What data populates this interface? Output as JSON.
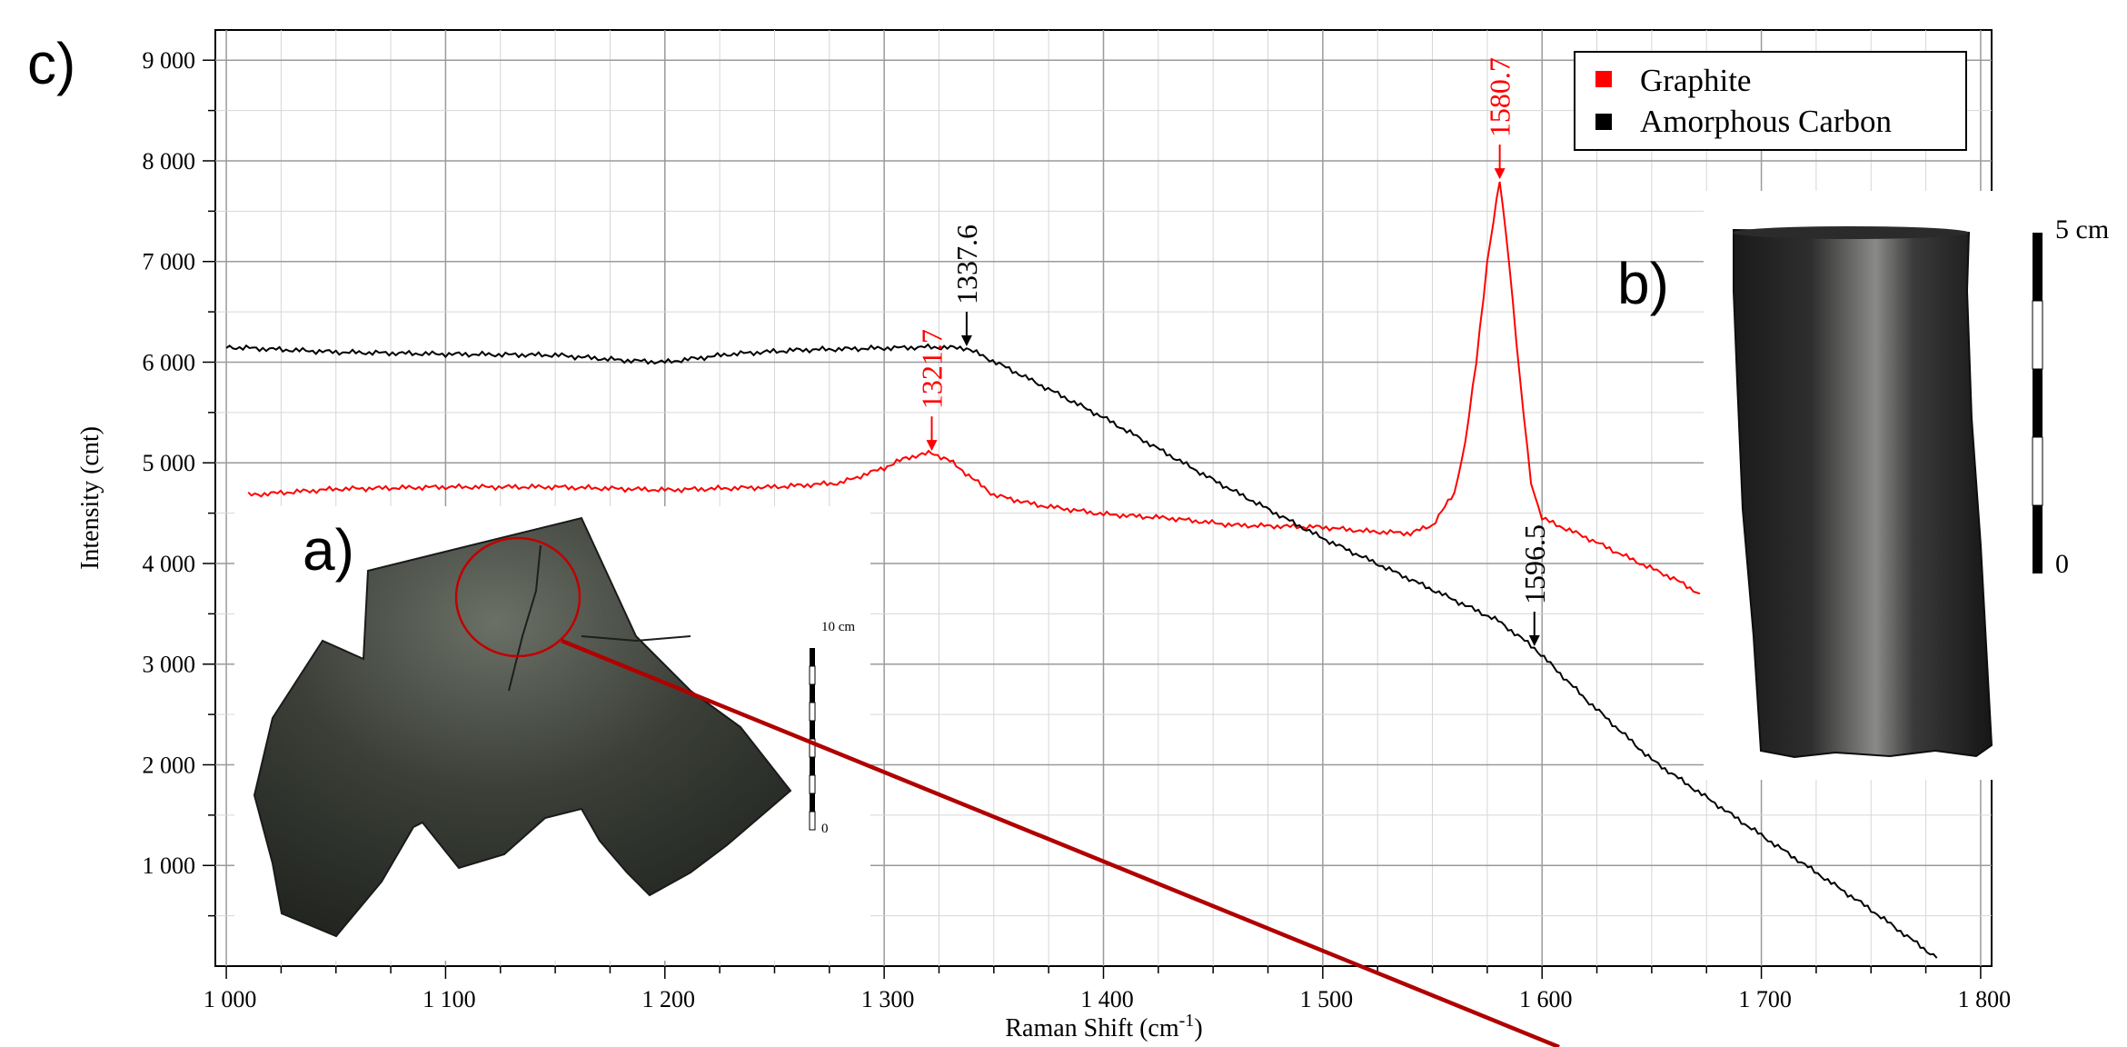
{
  "panel_labels": {
    "a": "a)",
    "b": "b)",
    "c": "c)"
  },
  "colors": {
    "graphite": "#ff0000",
    "amorphous": "#000000",
    "pointer_line": "#b00000",
    "grid": "#c8c8c8"
  },
  "chart_data": {
    "type": "line",
    "xlabel": "Raman Shift (cm",
    "xlabel_sup": "-1",
    "xlabel_end": ")",
    "ylabel": "Intensity (cnt)",
    "xlim": [
      995,
      1805
    ],
    "ylim": [
      0,
      9300
    ],
    "x_ticks": [
      {
        "v": 1000,
        "label": "1 000"
      },
      {
        "v": 1100,
        "label": "1 100"
      },
      {
        "v": 1200,
        "label": "1 200"
      },
      {
        "v": 1300,
        "label": "1 300"
      },
      {
        "v": 1400,
        "label": "1 400"
      },
      {
        "v": 1500,
        "label": "1 500"
      },
      {
        "v": 1600,
        "label": "1 600"
      },
      {
        "v": 1700,
        "label": "1 700"
      },
      {
        "v": 1800,
        "label": "1 800"
      }
    ],
    "y_ticks": [
      {
        "v": 1000,
        "label": "1 000"
      },
      {
        "v": 2000,
        "label": "2 000"
      },
      {
        "v": 3000,
        "label": "3 000"
      },
      {
        "v": 4000,
        "label": "4 000"
      },
      {
        "v": 5000,
        "label": "5 000"
      },
      {
        "v": 6000,
        "label": "6 000"
      },
      {
        "v": 7000,
        "label": "7 000"
      },
      {
        "v": 8000,
        "label": "8 000"
      },
      {
        "v": 9000,
        "label": "9 000"
      }
    ],
    "grid": true,
    "legend_position": "top-right",
    "series": [
      {
        "name": "Graphite",
        "color": "#ff0000",
        "x": [
          1010,
          1050,
          1100,
          1150,
          1200,
          1250,
          1280,
          1300,
          1310,
          1321.7,
          1330,
          1340,
          1350,
          1370,
          1400,
          1430,
          1460,
          1500,
          1520,
          1540,
          1550,
          1560,
          1565,
          1570,
          1575,
          1580.7,
          1585,
          1590,
          1595,
          1600,
          1605,
          1620,
          1640,
          1660,
          1672
        ],
        "y": [
          4680,
          4740,
          4760,
          4760,
          4730,
          4760,
          4800,
          4950,
          5050,
          5100,
          5020,
          4850,
          4680,
          4580,
          4490,
          4450,
          4380,
          4360,
          4320,
          4300,
          4380,
          4700,
          5200,
          6000,
          7000,
          7800,
          7000,
          5800,
          4800,
          4450,
          4400,
          4260,
          4050,
          3850,
          3700
        ]
      },
      {
        "name": "Amorphous Carbon",
        "color": "#000000",
        "x": [
          1000,
          1050,
          1100,
          1150,
          1180,
          1200,
          1230,
          1260,
          1300,
          1320,
          1337.6,
          1360,
          1400,
          1450,
          1500,
          1550,
          1580,
          1596.5,
          1620,
          1650,
          1700,
          1750,
          1780
        ],
        "y": [
          6150,
          6100,
          6080,
          6070,
          6020,
          6000,
          6080,
          6120,
          6140,
          6150,
          6140,
          5900,
          5450,
          4830,
          4250,
          3740,
          3430,
          3160,
          2650,
          2050,
          1300,
          560,
          80
        ]
      }
    ],
    "annotations": [
      {
        "label": "1321.7",
        "x": 1321.7,
        "y": 5100,
        "color": "#ff0000"
      },
      {
        "label": "1337.6",
        "x": 1337.6,
        "y": 6140,
        "color": "#000000"
      },
      {
        "label": "1580.7",
        "x": 1580.7,
        "y": 7800,
        "color": "#ff0000"
      },
      {
        "label": "1596.5",
        "x": 1596.5,
        "y": 3160,
        "color": "#000000"
      }
    ]
  },
  "inset_a": {
    "scale_top": "10 cm",
    "scale_bottom": "0"
  },
  "inset_b": {
    "scale_top": "5 cm",
    "scale_bottom": "0"
  }
}
